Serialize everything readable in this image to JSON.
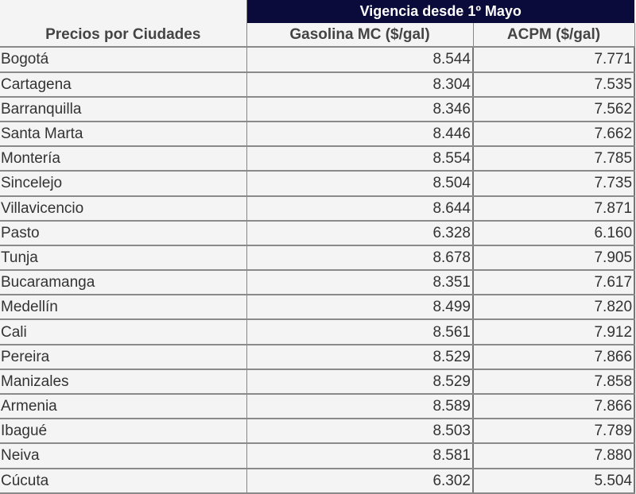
{
  "header": {
    "group_title": "Vigencia desde 1º Mayo",
    "city_column": "Precios por Ciudades",
    "gasoline_column": "Gasolina MC ($/gal)",
    "diesel_column": "ACPM ($/gal)"
  },
  "colors": {
    "header_background": "#0b0b3b",
    "header_text": "#ffffff",
    "body_background": "#f4f4f4"
  },
  "rows": [
    {
      "city": "Bogotá",
      "gasolina": "8.544",
      "acpm": "7.771"
    },
    {
      "city": "Cartagena",
      "gasolina": "8.304",
      "acpm": "7.535"
    },
    {
      "city": "Barranquilla",
      "gasolina": "8.346",
      "acpm": "7.562"
    },
    {
      "city": "Santa Marta",
      "gasolina": "8.446",
      "acpm": "7.662"
    },
    {
      "city": "Montería",
      "gasolina": "8.554",
      "acpm": "7.785"
    },
    {
      "city": "Sincelejo",
      "gasolina": "8.504",
      "acpm": "7.735"
    },
    {
      "city": "Villavicencio",
      "gasolina": "8.644",
      "acpm": "7.871"
    },
    {
      "city": "Pasto",
      "gasolina": "6.328",
      "acpm": "6.160"
    },
    {
      "city": "Tunja",
      "gasolina": "8.678",
      "acpm": "7.905"
    },
    {
      "city": "Bucaramanga",
      "gasolina": "8.351",
      "acpm": "7.617"
    },
    {
      "city": "Medellín",
      "gasolina": "8.499",
      "acpm": "7.820"
    },
    {
      "city": "Cali",
      "gasolina": "8.561",
      "acpm": "7.912"
    },
    {
      "city": "Pereira",
      "gasolina": "8.529",
      "acpm": "7.866"
    },
    {
      "city": "Manizales",
      "gasolina": "8.529",
      "acpm": "7.858"
    },
    {
      "city": "Armenia",
      "gasolina": "8.589",
      "acpm": "7.866"
    },
    {
      "city": "Ibagué",
      "gasolina": "8.503",
      "acpm": "7.789"
    },
    {
      "city": "Neiva",
      "gasolina": "8.581",
      "acpm": "7.880"
    },
    {
      "city": "Cúcuta",
      "gasolina": "6.302",
      "acpm": "5.504"
    }
  ]
}
